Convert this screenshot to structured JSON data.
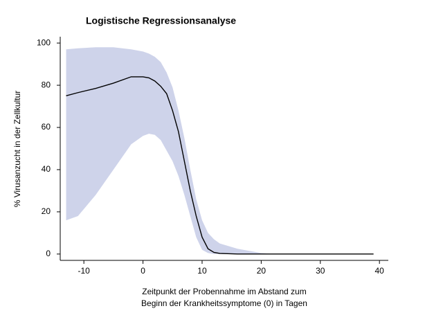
{
  "chart_data": {
    "type": "line",
    "title": "Logistische Regressionsanalyse",
    "ylabel": "% Virusanzucht in der Zellkultur",
    "xlabel": [
      "Zeitpunkt der Probennahme im Abstand zum",
      "Beginn der Krankheitssymptome (0) in Tagen"
    ],
    "x": [
      -13,
      -11,
      -8,
      -5,
      -2,
      0,
      1,
      2,
      3,
      4,
      5,
      6,
      7,
      8,
      9,
      10,
      11,
      12,
      13,
      16,
      20,
      22,
      39
    ],
    "series": [
      {
        "color": "#000000",
        "values": [
          75,
          76.5,
          78.5,
          81,
          84,
          84,
          83.5,
          82,
          79.5,
          76,
          68,
          58,
          44,
          30,
          18,
          8,
          2.5,
          0.8,
          0.3,
          0,
          0,
          0,
          0
        ]
      }
    ],
    "band": {
      "color": "#ced3ea",
      "upper": [
        97,
        97.5,
        98,
        98,
        97,
        96,
        95,
        93.5,
        91,
        86,
        79,
        68,
        55,
        40,
        26,
        16,
        10,
        7,
        5,
        2.5,
        0.5,
        0,
        0
      ],
      "lower": [
        16,
        18,
        28,
        40,
        52,
        56,
        57,
        56.5,
        54,
        49,
        44,
        37,
        28,
        18,
        8,
        2,
        0.5,
        0,
        0,
        0,
        0,
        0,
        0
      ]
    },
    "xlim": [
      -14,
      41.5
    ],
    "ylim": [
      -3,
      103
    ],
    "xticks": [
      -10,
      0,
      10,
      20,
      30,
      40
    ],
    "yticks": [
      0,
      20,
      40,
      60,
      80,
      100
    ],
    "grid": false
  }
}
